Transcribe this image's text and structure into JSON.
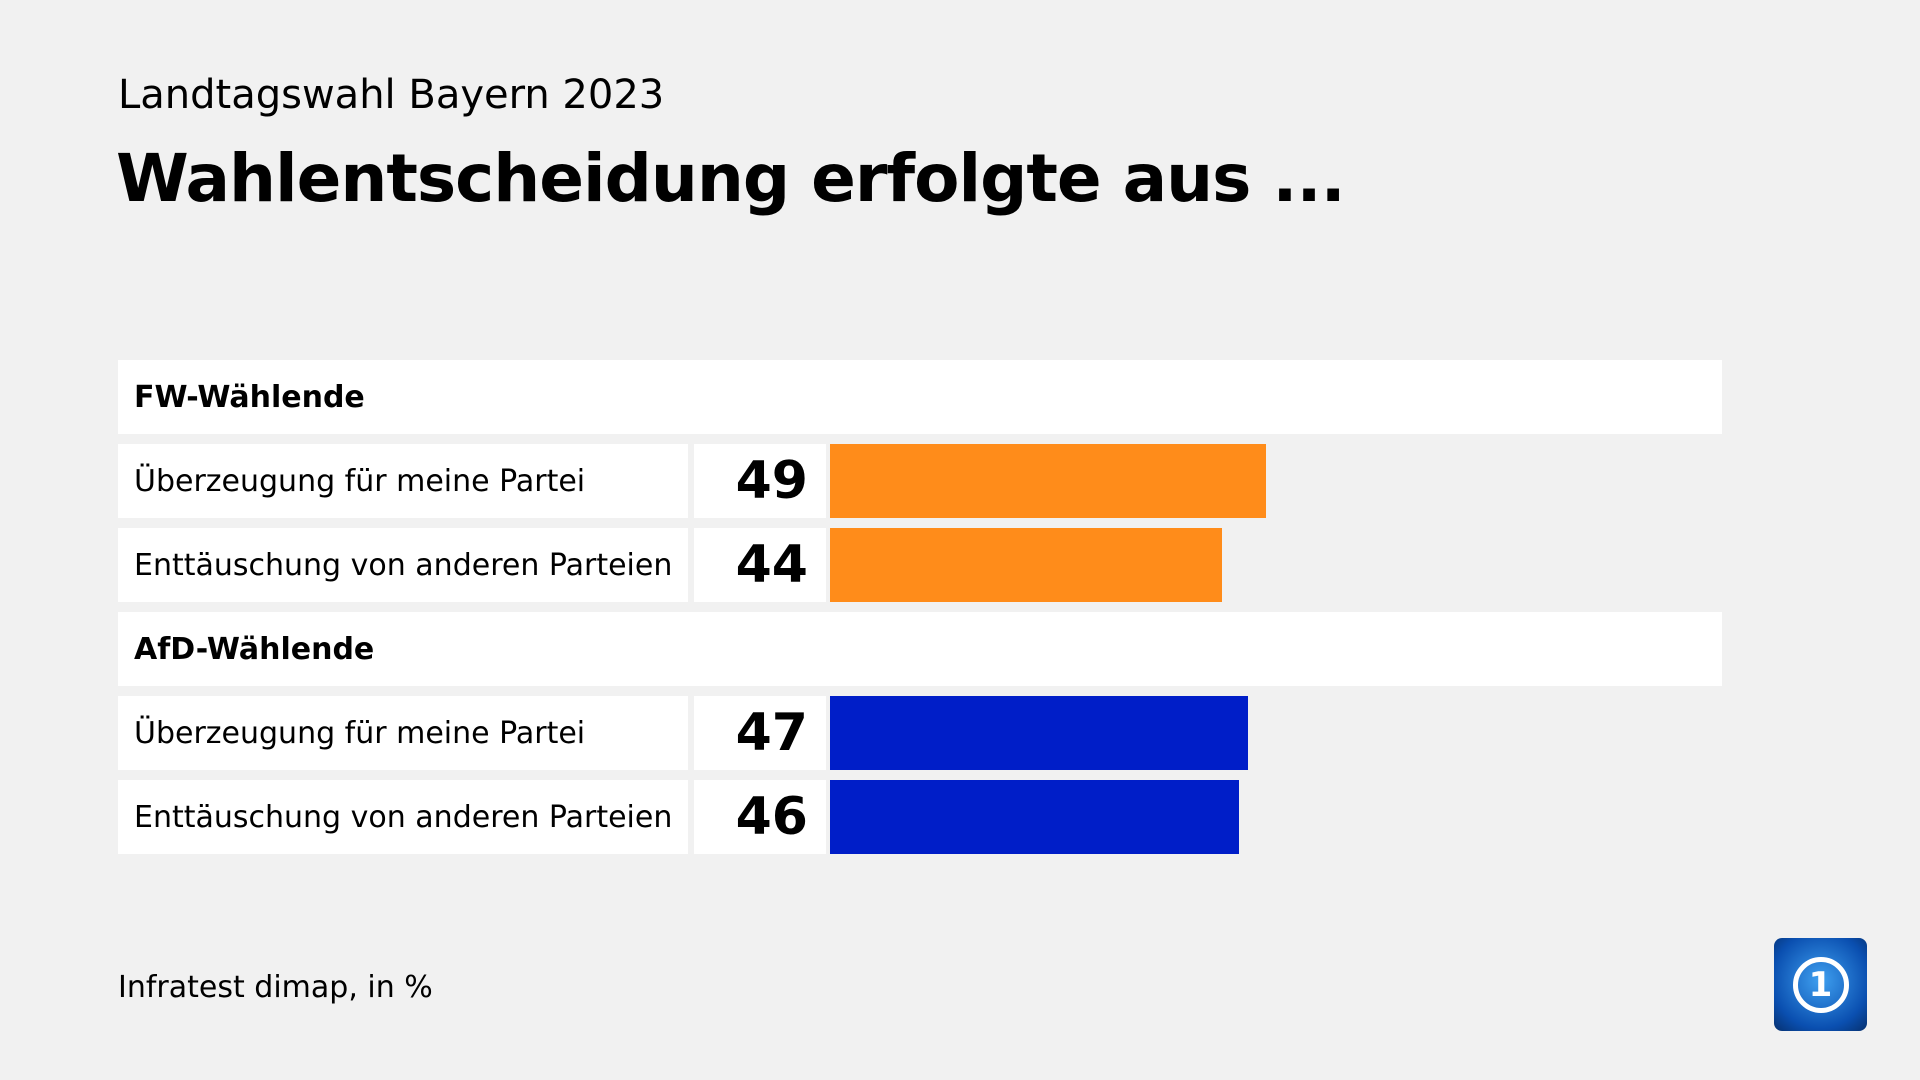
{
  "subtitle": "Landtagswahl Bayern 2023",
  "title": "Wahlentscheidung erfolgte aus ...",
  "source": "Infratest dimap, in %",
  "logo_text": "1",
  "chart_data": {
    "type": "bar",
    "orientation": "horizontal",
    "xlim": [
      0,
      100
    ],
    "groups": [
      {
        "name": "FW-Wählende",
        "color": "#ff8c1a",
        "categories": [
          "Überzeugung für meine Partei",
          "Enttäuschung von anderen Parteien"
        ],
        "values": [
          49,
          44
        ]
      },
      {
        "name": "AfD-Wählende",
        "color": "#001ec8",
        "categories": [
          "Überzeugung für meine Partei",
          "Enttäuschung von anderen Parteien"
        ],
        "values": [
          47,
          46
        ]
      }
    ]
  }
}
